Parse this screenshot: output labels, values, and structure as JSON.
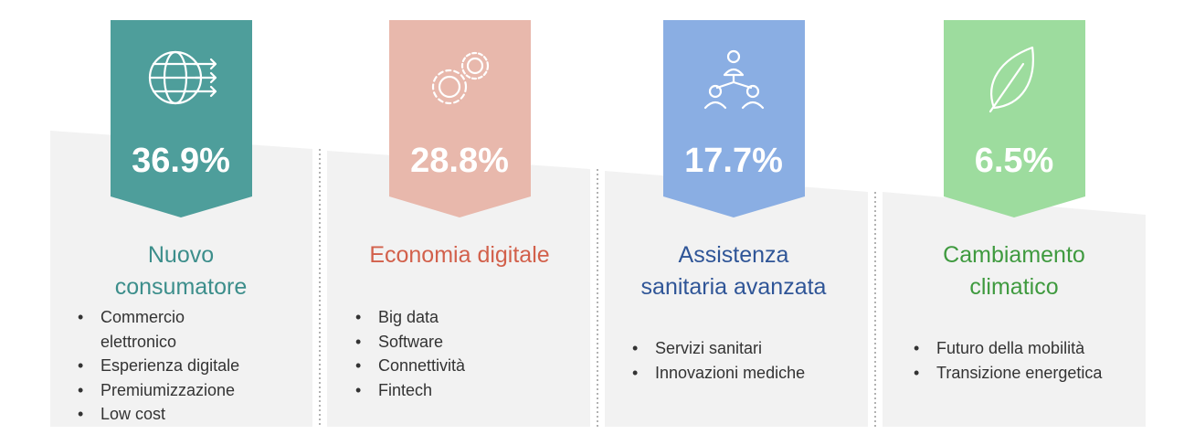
{
  "cards": [
    {
      "percent": "36.9%",
      "title": [
        "Nuovo",
        "consumatore"
      ],
      "items": [
        "Commercio elettronico",
        "Esperienza digitale",
        "Premiumizzazione",
        "Low cost"
      ]
    },
    {
      "percent": "28.8%",
      "title": [
        "Economia digitale"
      ],
      "items": [
        "Big data",
        "Software",
        "Connettività",
        "Fintech"
      ]
    },
    {
      "percent": "17.7%",
      "title": [
        "Assistenza",
        "sanitaria avanzata"
      ],
      "items": [
        "Servizi sanitari",
        "Innovazioni mediche"
      ]
    },
    {
      "percent": "6.5%",
      "title": [
        "Cambiamento",
        "climatico"
      ],
      "items": [
        "Futuro della mobilità",
        "Transizione energetica"
      ]
    }
  ]
}
